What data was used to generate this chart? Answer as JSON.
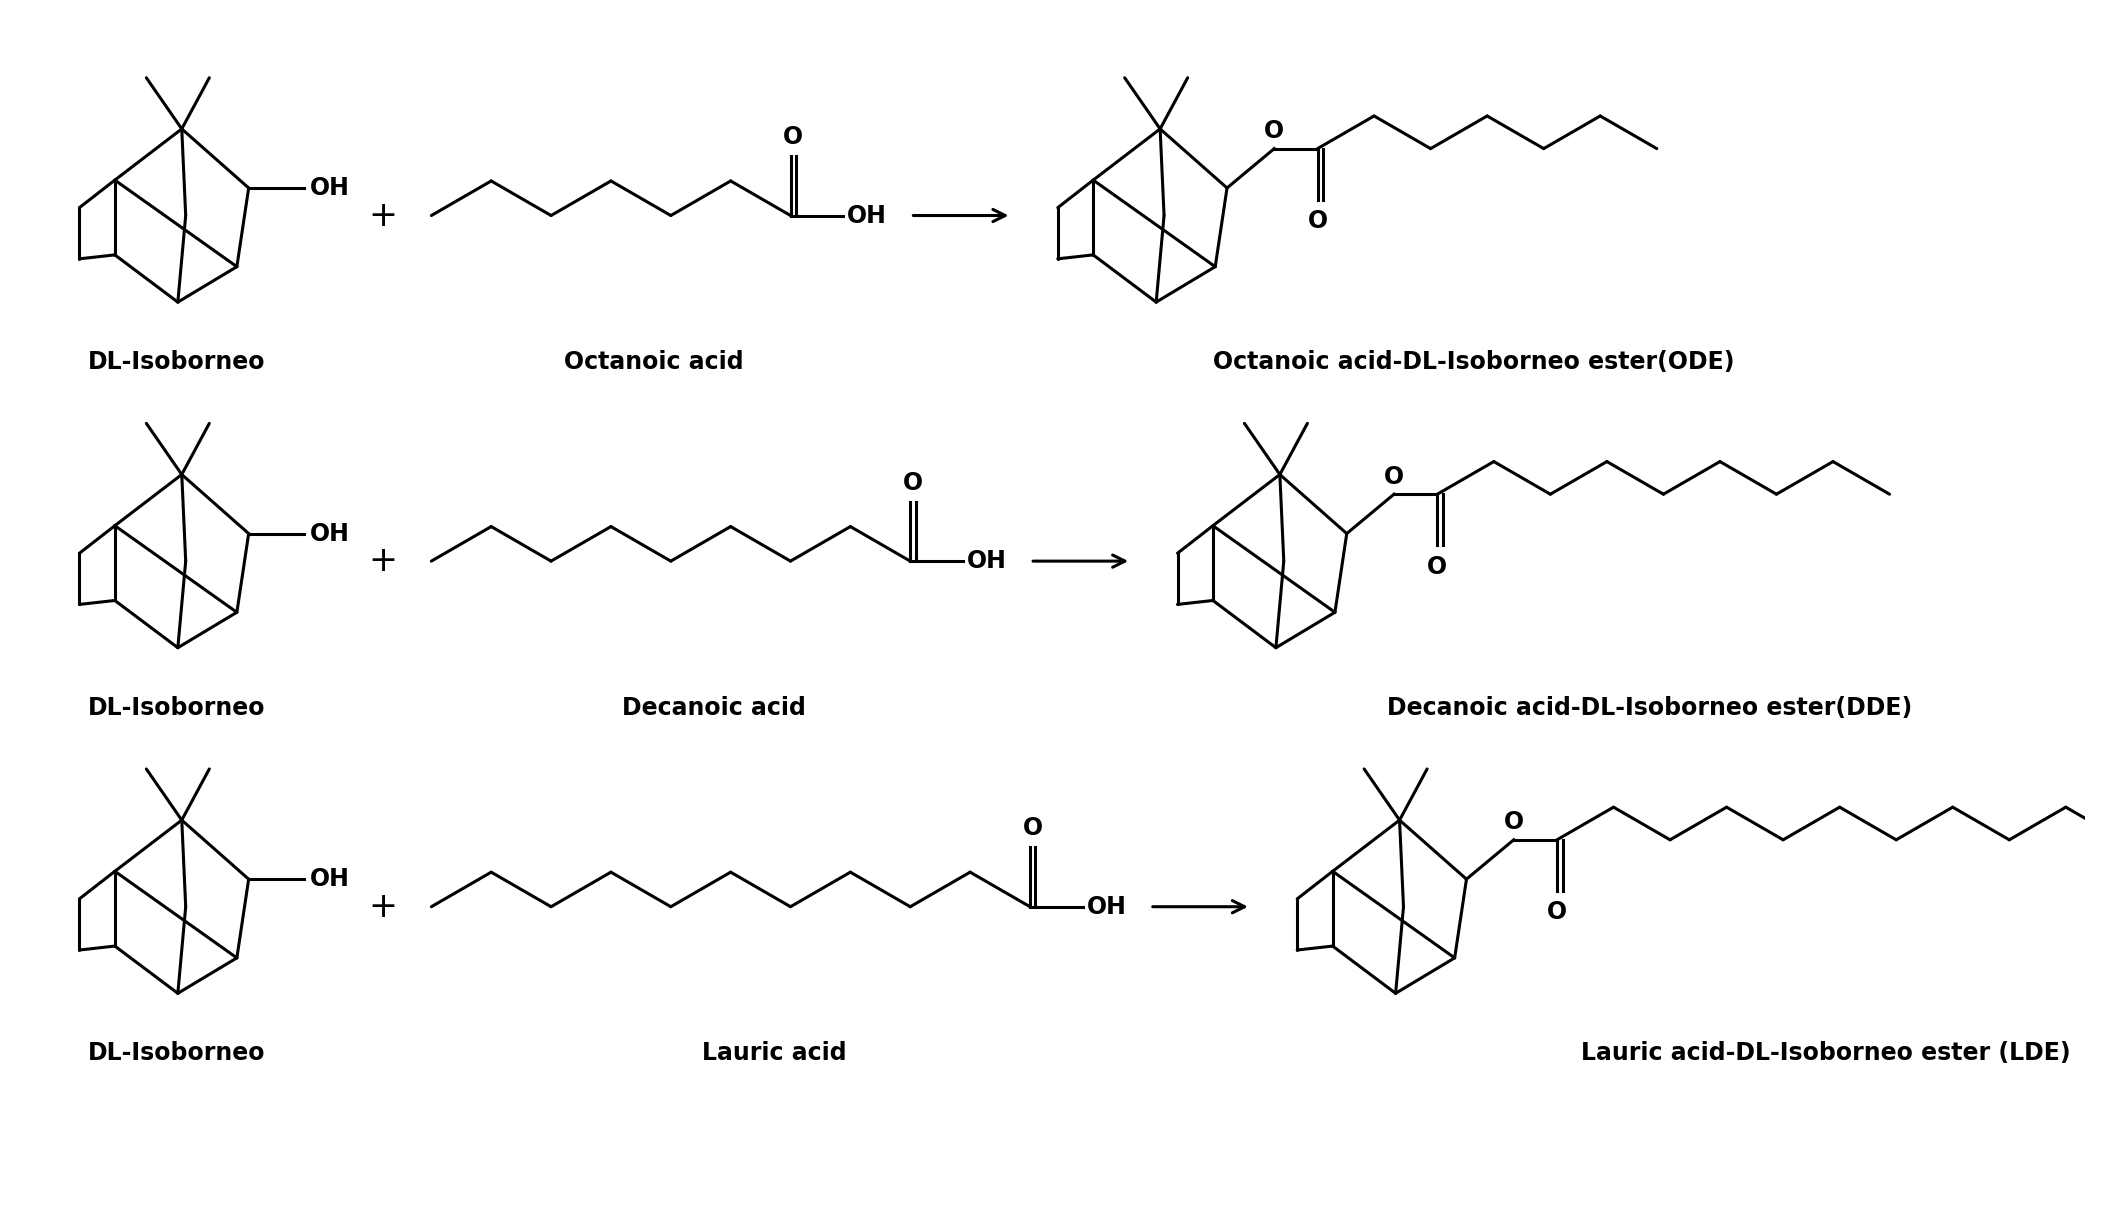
{
  "background_color": "#ffffff",
  "figsize": [
    21.28,
    12.24
  ],
  "dpi": 100,
  "reactions": [
    {
      "row": 0,
      "reactant1_label": "DL-Isoborneo",
      "reactant2_label": "Octanoic acid",
      "product_label": "Octanoic acid-DL-Isoborneo ester(ODE)",
      "acid_chain_segments": 6
    },
    {
      "row": 1,
      "reactant1_label": "DL-Isoborneo",
      "reactant2_label": "Decanoic acid",
      "product_label": "Decanoic acid-DL-Isoborneo ester(DDE)",
      "acid_chain_segments": 8
    },
    {
      "row": 2,
      "reactant1_label": "DL-Isoborneo",
      "reactant2_label": "Lauric acid",
      "product_label": "Lauric acid-DL-Isoborneo ester (LDE)",
      "acid_chain_segments": 10
    }
  ],
  "label_fontsize": 17,
  "label_fontweight": "bold",
  "line_color": "#000000",
  "line_width": 2.2
}
